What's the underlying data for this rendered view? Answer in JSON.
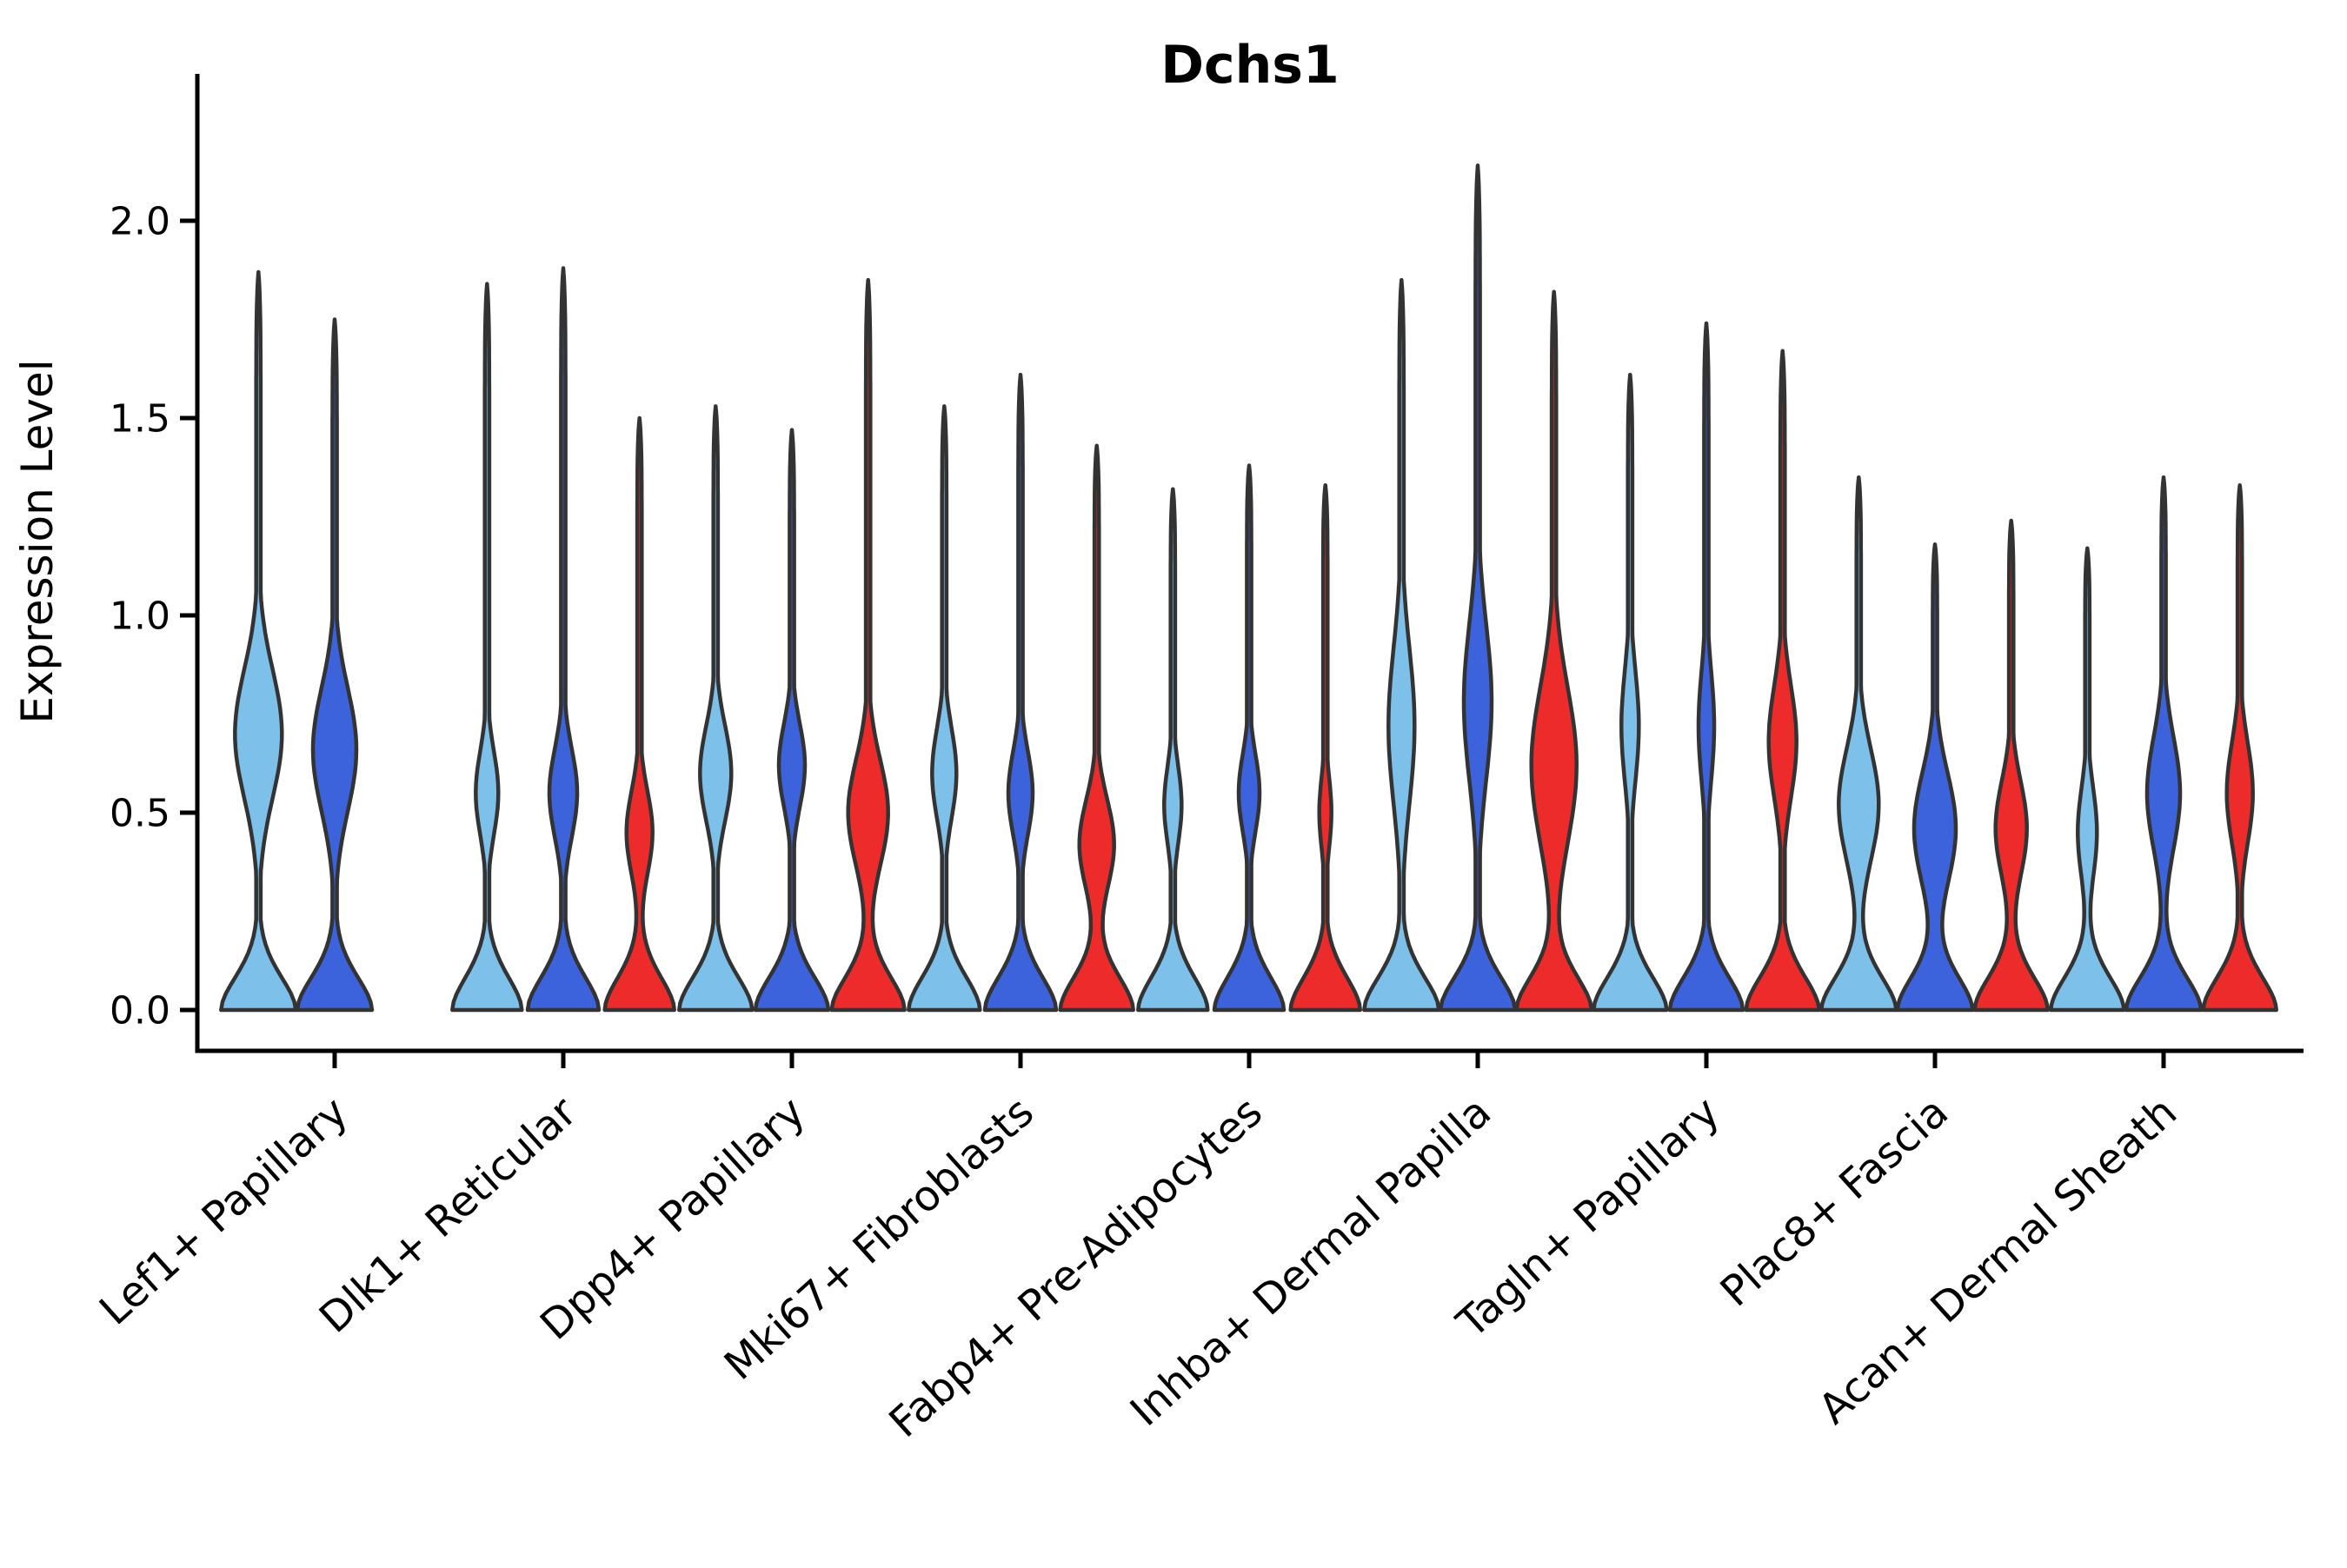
{
  "chart_data": {
    "type": "violin",
    "title": "Dchs1",
    "ylabel": "Expression Level",
    "xlabel": "",
    "ylim": [
      -0.104,
      2.372
    ],
    "yticks": [
      {
        "value": 0.0,
        "label": "0.0"
      },
      {
        "value": 0.5,
        "label": "0.5"
      },
      {
        "value": 1.0,
        "label": "1.0"
      },
      {
        "value": 1.5,
        "label": "1.5"
      },
      {
        "value": 2.0,
        "label": "2.0"
      }
    ],
    "grid": false,
    "legend": "none",
    "colors": {
      "series_1": "#7DC1EB",
      "series_2": "#3C63DB",
      "series_3": "#EE2B2B",
      "outline": "#333333",
      "axis": "#000000"
    },
    "categories": [
      "Lef1+ Papillary",
      "Dlk1+ Reticular",
      "Dpp4+ Papillary",
      "Mki67+ Fibroblasts",
      "Fabp4+ Pre-Adipocytes",
      "Inhba+ Dermal Papilla",
      "Tagln+ Papillary",
      "Plac8+ Fascia",
      "Acan+ Dermal Sheath"
    ],
    "groups": [
      {
        "label": "Lef1+ Papillary",
        "violins": [
          {
            "series": 1,
            "color": "#7DC1EB",
            "max": 1.87,
            "base_hw": 43,
            "bulge_center": 0.7,
            "bulge_width": 27,
            "bulge_sigma": 0.23
          },
          {
            "series": 2,
            "color": "#3C63DB",
            "max": 1.75,
            "base_hw": 43,
            "bulge_center": 0.66,
            "bulge_width": 25,
            "bulge_sigma": 0.22
          }
        ]
      },
      {
        "label": "Dlk1+ Reticular",
        "violins": [
          {
            "series": 1,
            "color": "#7DC1EB",
            "max": 1.84,
            "base_hw": 40,
            "bulge_center": 0.55,
            "bulge_width": 13,
            "bulge_sigma": 0.15
          },
          {
            "series": 2,
            "color": "#3C63DB",
            "max": 1.88,
            "base_hw": 41,
            "bulge_center": 0.55,
            "bulge_width": 16,
            "bulge_sigma": 0.16
          },
          {
            "series": 3,
            "color": "#EE2B2B",
            "max": 1.5,
            "base_hw": 40,
            "bulge_center": 0.45,
            "bulge_width": 15,
            "bulge_sigma": 0.15
          }
        ]
      },
      {
        "label": "Dpp4+ Papillary",
        "violins": [
          {
            "series": 1,
            "color": "#7DC1EB",
            "max": 1.53,
            "base_hw": 42,
            "bulge_center": 0.6,
            "bulge_width": 18,
            "bulge_sigma": 0.17
          },
          {
            "series": 2,
            "color": "#3C63DB",
            "max": 1.47,
            "base_hw": 42,
            "bulge_center": 0.62,
            "bulge_width": 15,
            "bulge_sigma": 0.15
          },
          {
            "series": 3,
            "color": "#EE2B2B",
            "max": 1.85,
            "base_hw": 42,
            "bulge_center": 0.5,
            "bulge_width": 23,
            "bulge_sigma": 0.19
          }
        ]
      },
      {
        "label": "Mki67+ Fibroblasts",
        "violins": [
          {
            "series": 1,
            "color": "#7DC1EB",
            "max": 1.53,
            "base_hw": 41,
            "bulge_center": 0.6,
            "bulge_width": 14,
            "bulge_sigma": 0.16
          },
          {
            "series": 2,
            "color": "#3C63DB",
            "max": 1.61,
            "base_hw": 41,
            "bulge_center": 0.55,
            "bulge_width": 14,
            "bulge_sigma": 0.15
          },
          {
            "series": 3,
            "color": "#EE2B2B",
            "max": 1.43,
            "base_hw": 42,
            "bulge_center": 0.42,
            "bulge_width": 20,
            "bulge_sigma": 0.16
          }
        ]
      },
      {
        "label": "Fabp4+ Pre-Adipocytes",
        "violins": [
          {
            "series": 1,
            "color": "#7DC1EB",
            "max": 1.32,
            "base_hw": 40,
            "bulge_center": 0.52,
            "bulge_width": 10,
            "bulge_sigma": 0.14
          },
          {
            "series": 2,
            "color": "#3C63DB",
            "max": 1.38,
            "base_hw": 40,
            "bulge_center": 0.55,
            "bulge_width": 12,
            "bulge_sigma": 0.14
          },
          {
            "series": 3,
            "color": "#EE2B2B",
            "max": 1.33,
            "base_hw": 40,
            "bulge_center": 0.5,
            "bulge_width": 7,
            "bulge_sigma": 0.13
          }
        ]
      },
      {
        "label": "Inhba+ Dermal Papilla",
        "violins": [
          {
            "series": 1,
            "color": "#7DC1EB",
            "max": 1.85,
            "base_hw": 43,
            "bulge_center": 0.72,
            "bulge_width": 15,
            "bulge_sigma": 0.28
          },
          {
            "series": 2,
            "color": "#3C63DB",
            "max": 2.14,
            "base_hw": 43,
            "bulge_center": 0.78,
            "bulge_width": 16,
            "bulge_sigma": 0.28
          },
          {
            "series": 3,
            "color": "#EE2B2B",
            "max": 1.82,
            "base_hw": 43,
            "bulge_center": 0.62,
            "bulge_width": 26,
            "bulge_sigma": 0.28
          }
        ]
      },
      {
        "label": "Tagln+ Papillary",
        "violins": [
          {
            "series": 1,
            "color": "#7DC1EB",
            "max": 1.61,
            "base_hw": 42,
            "bulge_center": 0.72,
            "bulge_width": 10,
            "bulge_sigma": 0.2
          },
          {
            "series": 2,
            "color": "#3C63DB",
            "max": 1.74,
            "base_hw": 42,
            "bulge_center": 0.72,
            "bulge_width": 9,
            "bulge_sigma": 0.2
          },
          {
            "series": 3,
            "color": "#EE2B2B",
            "max": 1.67,
            "base_hw": 42,
            "bulge_center": 0.68,
            "bulge_width": 16,
            "bulge_sigma": 0.2
          }
        ]
      },
      {
        "label": "Plac8+ Fascia",
        "violins": [
          {
            "series": 1,
            "color": "#7DC1EB",
            "max": 1.35,
            "base_hw": 43,
            "bulge_center": 0.52,
            "bulge_width": 23,
            "bulge_sigma": 0.2
          },
          {
            "series": 2,
            "color": "#3C63DB",
            "max": 1.18,
            "base_hw": 43,
            "bulge_center": 0.46,
            "bulge_width": 24,
            "bulge_sigma": 0.2
          },
          {
            "series": 3,
            "color": "#EE2B2B",
            "max": 1.24,
            "base_hw": 42,
            "bulge_center": 0.46,
            "bulge_width": 18,
            "bulge_sigma": 0.17
          }
        ]
      },
      {
        "label": "Acan+ Dermal Sheath",
        "violins": [
          {
            "series": 1,
            "color": "#7DC1EB",
            "max": 1.17,
            "base_hw": 42,
            "bulge_center": 0.45,
            "bulge_width": 11,
            "bulge_sigma": 0.16
          },
          {
            "series": 2,
            "color": "#3C63DB",
            "max": 1.35,
            "base_hw": 43,
            "bulge_center": 0.55,
            "bulge_width": 19,
            "bulge_sigma": 0.2
          },
          {
            "series": 3,
            "color": "#EE2B2B",
            "max": 1.33,
            "base_hw": 42,
            "bulge_center": 0.55,
            "bulge_width": 15,
            "bulge_sigma": 0.18
          }
        ]
      }
    ]
  }
}
